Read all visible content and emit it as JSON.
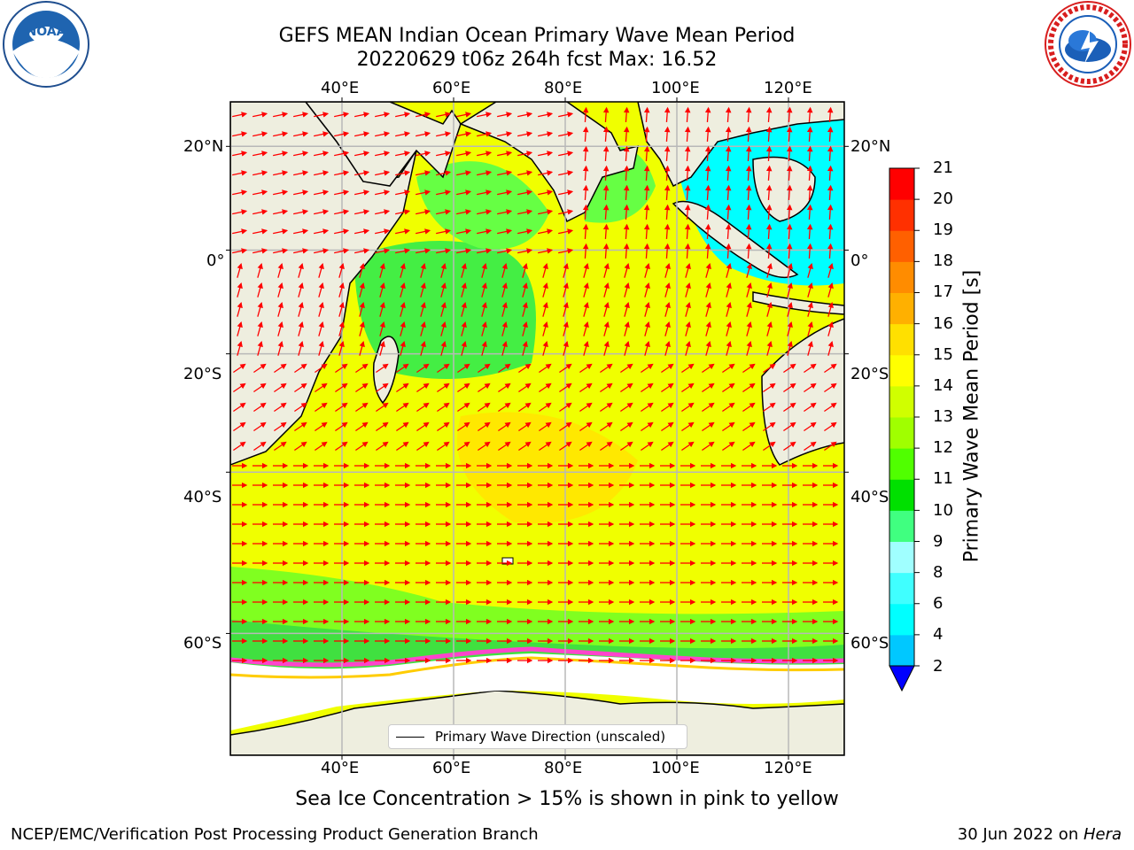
{
  "title": {
    "line1": "GEFS MEAN Indian Ocean Primary Wave Mean Period",
    "line2": "20220629 t06z 264h fcst   Max: 16.52"
  },
  "logos": {
    "left_icon": "noaa-logo",
    "right_icon": "national-weather-service-logo"
  },
  "map": {
    "projection": "plate carree",
    "lon_range": [
      20,
      130
    ],
    "lat_range": [
      -70,
      28
    ],
    "lon_ticks": [
      "40°E",
      "60°E",
      "80°E",
      "100°E",
      "120°E"
    ],
    "lat_ticks": [
      "20°N",
      "0°",
      "20°S",
      "40°S",
      "60°S"
    ],
    "grid": true,
    "land_color": "#eeeedf",
    "sea_ice_note": "Sea Ice Concentration > 15% is shown in pink to yellow",
    "arrow_color": "#ff0000"
  },
  "legend": {
    "label": "Primary Wave Direction (unscaled)",
    "placement": "bottom-center"
  },
  "colorbar": {
    "title": "Primary Wave Mean Period [s]",
    "ticks": [
      "2",
      "4",
      "6",
      "8",
      "9",
      "10",
      "11",
      "12",
      "13",
      "14",
      "15",
      "16",
      "17",
      "18",
      "19",
      "20",
      "21"
    ],
    "colors": [
      "#0060ff",
      "#00c8ff",
      "#00ffff",
      "#40ffff",
      "#a0ffff",
      "#40ff80",
      "#00e000",
      "#50ff00",
      "#a0ff00",
      "#d0ff00",
      "#ffff00",
      "#ffe000",
      "#ffb000",
      "#ff8c00",
      "#ff6000",
      "#ff3000",
      "#ff0000"
    ],
    "extend_min_color": "#0000ff"
  },
  "footer": {
    "left": "NCEP/EMC/Verification Post Processing Product Generation Branch",
    "date": "30 Jun 2022 on ",
    "machine": "Hera"
  }
}
